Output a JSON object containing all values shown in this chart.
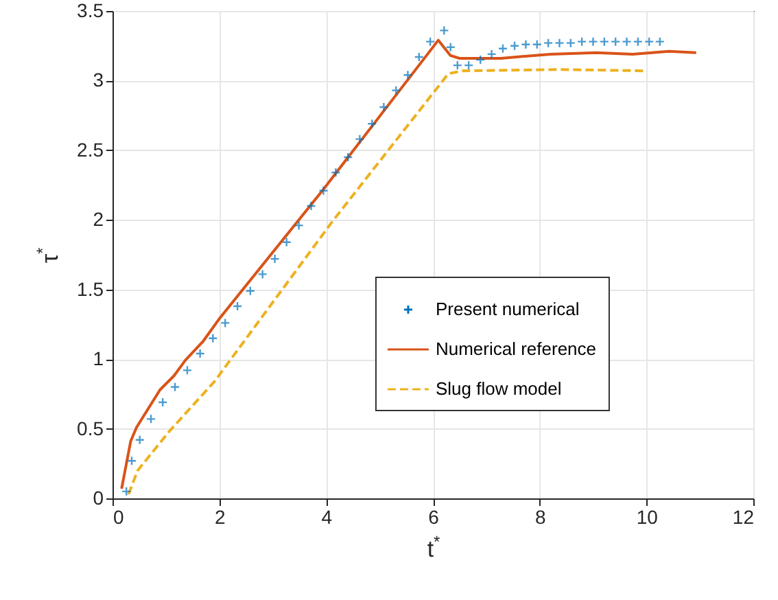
{
  "chart_data": {
    "type": "line",
    "xlabel": "t$^{*}$",
    "ylabel": "τ$^{*}$",
    "xlim": [
      0,
      12
    ],
    "xticks": [
      0,
      2,
      4,
      6,
      8,
      10,
      12
    ],
    "ylim": [
      0,
      3.5
    ],
    "yticks": [
      0,
      0.5,
      1,
      1.5,
      2,
      2.5,
      3,
      3.5
    ],
    "grid": true,
    "legend": "right",
    "series": [
      {
        "name": "Present numerical",
        "type": "scatter",
        "marker": "cross",
        "color": "#0072bd",
        "x": [
          0.26,
          0.36,
          0.51,
          0.72,
          0.94,
          1.17,
          1.4,
          1.64,
          1.88,
          2.11,
          2.34,
          2.58,
          2.81,
          3.04,
          3.26,
          3.49,
          3.72,
          3.95,
          4.18,
          4.41,
          4.63,
          4.86,
          5.08,
          5.31,
          5.53,
          5.74,
          5.95,
          6.21,
          6.33,
          6.46,
          6.67,
          6.89,
          7.1,
          7.31,
          7.53,
          7.74,
          7.95,
          8.16,
          8.37,
          8.58,
          8.79,
          9.0,
          9.21,
          9.42,
          9.63,
          9.84,
          10.05,
          10.25
        ],
        "values": [
          0.05,
          0.27,
          0.42,
          0.57,
          0.69,
          0.8,
          0.92,
          1.04,
          1.15,
          1.26,
          1.38,
          1.49,
          1.61,
          1.72,
          1.84,
          1.96,
          2.1,
          2.21,
          2.34,
          2.45,
          2.58,
          2.69,
          2.81,
          2.93,
          3.04,
          3.17,
          3.28,
          3.36,
          3.24,
          3.11,
          3.11,
          3.15,
          3.19,
          3.23,
          3.25,
          3.26,
          3.26,
          3.27,
          3.27,
          3.27,
          3.28,
          3.28,
          3.28,
          3.28,
          3.28,
          3.28,
          3.28,
          3.28
        ]
      },
      {
        "name": "Numerical reference",
        "type": "line",
        "line_style": "solid",
        "color": "#d95319",
        "x": [
          0.17,
          0.34,
          0.45,
          0.89,
          1.15,
          1.36,
          1.7,
          2.0,
          3.95,
          6.1,
          6.33,
          6.5,
          7.27,
          8.2,
          9.06,
          9.74,
          10.42,
          10.93
        ],
        "values": [
          0.07,
          0.41,
          0.51,
          0.78,
          0.88,
          0.99,
          1.13,
          1.29,
          2.22,
          3.29,
          3.18,
          3.16,
          3.16,
          3.19,
          3.2,
          3.19,
          3.21,
          3.2
        ]
      },
      {
        "name": "Slug flow model",
        "type": "line",
        "line_style": "dashed",
        "color": "#edb120",
        "x": [
          0.3,
          0.47,
          1.06,
          1.91,
          4.12,
          6.29,
          6.55,
          8.38,
          9.99
        ],
        "values": [
          0.03,
          0.2,
          0.48,
          0.84,
          1.99,
          3.05,
          3.07,
          3.08,
          3.07
        ]
      }
    ]
  }
}
